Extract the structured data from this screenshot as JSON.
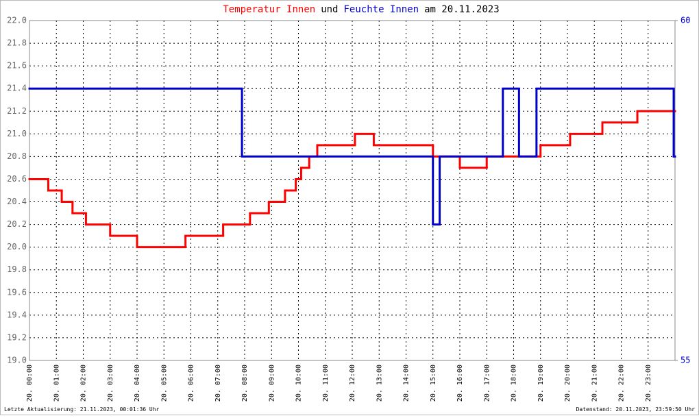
{
  "chart_data": {
    "type": "step",
    "title_parts": [
      {
        "text": "Temperatur Innen",
        "color": "#ff0000"
      },
      {
        "text": "und",
        "color": "#000000"
      },
      {
        "text": "Feuchte Innen",
        "color": "#0000cc"
      },
      {
        "text": "am 20.11.2023",
        "color": "#000000"
      }
    ],
    "footer_left": "Letzte Aktualisierung: 21.11.2023, 00:01:36 Uhr",
    "footer_right": "Datenstand: 20.11.2023, 23:59:50 Uhr",
    "xlim": [
      0,
      24
    ],
    "xticks": [
      {
        "value": 0,
        "label": "20. 00:00"
      },
      {
        "value": 1,
        "label": "20. 01:00"
      },
      {
        "value": 2,
        "label": "20. 02:00"
      },
      {
        "value": 3,
        "label": "20. 03:00"
      },
      {
        "value": 4,
        "label": "20. 04:00"
      },
      {
        "value": 5,
        "label": "20. 05:00"
      },
      {
        "value": 6,
        "label": "20. 06:00"
      },
      {
        "value": 7,
        "label": "20. 07:00"
      },
      {
        "value": 8,
        "label": "20. 08:00"
      },
      {
        "value": 9,
        "label": "20. 09:00"
      },
      {
        "value": 10,
        "label": "20. 10:00"
      },
      {
        "value": 11,
        "label": "20. 11:00"
      },
      {
        "value": 12,
        "label": "20. 12:00"
      },
      {
        "value": 13,
        "label": "20. 13:00"
      },
      {
        "value": 14,
        "label": "20. 14:00"
      },
      {
        "value": 15,
        "label": "20. 15:00"
      },
      {
        "value": 16,
        "label": "20. 16:00"
      },
      {
        "value": 17,
        "label": "20. 17:00"
      },
      {
        "value": 18,
        "label": "20. 18:00"
      },
      {
        "value": 19,
        "label": "20. 19:00"
      },
      {
        "value": 20,
        "label": "20. 20:00"
      },
      {
        "value": 21,
        "label": "20. 21:00"
      },
      {
        "value": 22,
        "label": "20. 22:00"
      },
      {
        "value": 23,
        "label": "20. 23:00"
      }
    ],
    "ylim": [
      19,
      22
    ],
    "yticks": [
      {
        "value": 19,
        "label": "19.0"
      },
      {
        "value": 19.2,
        "label": "19.2"
      },
      {
        "value": 19.4,
        "label": "19.4"
      },
      {
        "value": 19.6,
        "label": "19.6"
      },
      {
        "value": 19.8,
        "label": "19.8"
      },
      {
        "value": 20,
        "label": "20.0"
      },
      {
        "value": 20.2,
        "label": "20.2"
      },
      {
        "value": 20.4,
        "label": "20.4"
      },
      {
        "value": 20.6,
        "label": "20.6"
      },
      {
        "value": 20.8,
        "label": "20.8"
      },
      {
        "value": 21,
        "label": "21.0"
      },
      {
        "value": 21.2,
        "label": "21.2"
      },
      {
        "value": 21.4,
        "label": "21.4"
      },
      {
        "value": 21.6,
        "label": "21.6"
      },
      {
        "value": 21.8,
        "label": "21.8"
      },
      {
        "value": 22,
        "label": "22.0"
      }
    ],
    "y2lim": [
      55,
      60
    ],
    "y2ticks": [
      55,
      60
    ],
    "grid": true,
    "series": [
      {
        "name": "Temperatur Innen",
        "color": "#ff0000",
        "x": [
          0,
          0.7,
          1.2,
          1.6,
          2.1,
          3.0,
          4.0,
          5.8,
          7.2,
          8.2,
          8.9,
          9.5,
          9.9,
          10.1,
          10.4,
          10.7,
          12.1,
          12.8,
          15.0,
          16.0,
          17.0,
          19.0,
          20.1,
          21.3,
          22.6
        ],
        "values": [
          20.6,
          20.5,
          20.4,
          20.3,
          20.2,
          20.1,
          20.0,
          20.1,
          20.2,
          20.3,
          20.4,
          20.5,
          20.6,
          20.7,
          20.8,
          20.9,
          21.0,
          20.9,
          20.8,
          20.7,
          20.8,
          20.9,
          21.0,
          21.1,
          21.2
        ]
      },
      {
        "name": "Feuchte Innen",
        "color": "#0000cc",
        "axis": "y2",
        "x": [
          0,
          7.9,
          15.0,
          15.25,
          17.6,
          18.2,
          18.85,
          23.95
        ],
        "values": [
          59,
          58,
          57,
          58,
          59,
          58,
          59,
          58
        ]
      }
    ]
  }
}
